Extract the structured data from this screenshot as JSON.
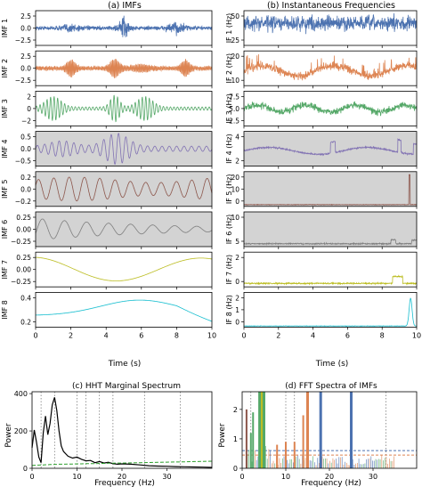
{
  "titles": {
    "imfs": "(a) IMFs",
    "freqs": "(b) Instantaneous Frequencies",
    "hht": "(c) HHT Marginal Spectrum",
    "fft": "(d) FFT Spectra of IMFs"
  },
  "labels": {
    "time": "Time (s)",
    "frequency": "Frequency (Hz)",
    "power": "Power"
  },
  "colors": {
    "imf1": "#4c72b0",
    "imf2": "#dd8452",
    "imf3": "#55a868",
    "imf4": "#8172b3",
    "imf5": "#8c564b",
    "imf6": "#7f7f7f",
    "imf7": "#bcbd22",
    "imf8": "#17becf",
    "shade": "#d3d3d3"
  },
  "chart_data": [
    {
      "type": "line",
      "panel": "(a) IMFs",
      "xlabel": "Time (s)",
      "xlim": [
        0,
        10
      ],
      "xticks": [
        0,
        2,
        4,
        6,
        8,
        10
      ],
      "rows": [
        {
          "ylabel": "IMF 1",
          "yticks": [
            "2.5",
            "0.0",
            "−2.5"
          ],
          "ylim": [
            -4,
            4
          ],
          "shaded": false,
          "color": "#4c72b0",
          "character": "broadband noise ~40 Hz, spikes near 5 s"
        },
        {
          "ylabel": "IMF 2",
          "yticks": [
            "2.5",
            "0.0",
            "−2.5"
          ],
          "ylim": [
            -3.5,
            3.5
          ],
          "shaded": false,
          "color": "#dd8452",
          "character": "oscillation ~14 Hz, bursts near 2, 4.5, 8.5 s"
        },
        {
          "ylabel": "IMF 3",
          "yticks": [
            "2",
            "0",
            "−2"
          ],
          "ylim": [
            -2.2,
            2.2
          ],
          "shaded": false,
          "color": "#55a868",
          "character": "oscillation ~5 Hz, bursts near 1, 4.5, 6.2 s"
        },
        {
          "ylabel": "IMF 4",
          "yticks": [
            "0.5",
            "0.0",
            "−0.5"
          ],
          "ylim": [
            -0.8,
            0.8
          ],
          "shaded": true,
          "color": "#8172b3",
          "character": "oscillation ~2.5 Hz, large near 4-5 s"
        },
        {
          "ylabel": "IMF 5",
          "yticks": [
            "0.2",
            "0.0",
            "−0.2"
          ],
          "ylim": [
            -0.32,
            0.32
          ],
          "shaded": true,
          "color": "#8c564b",
          "character": "oscillation ~1.2 Hz"
        },
        {
          "ylabel": "IMF 6",
          "yticks": [
            "0.25",
            "0.00",
            "−0.25"
          ],
          "ylim": [
            -0.4,
            0.4
          ],
          "shaded": true,
          "color": "#7f7f7f",
          "character": "decaying oscillation ~0.8 Hz"
        },
        {
          "ylabel": "IMF 7",
          "yticks": [
            "0.25",
            "0.00",
            "−0.25"
          ],
          "ylim": [
            -0.4,
            0.4
          ],
          "shaded": false,
          "color": "#bcbd22",
          "character": "slow wave, min ~-0.3 at 4.5 s"
        },
        {
          "ylabel": "IMF 8",
          "yticks": [
            "0.4",
            "0.2"
          ],
          "ylim": [
            0.05,
            0.5
          ],
          "shaded": false,
          "color": "#17becf",
          "character": "trend rising 0.2 to 0.4 at 6 s then falling to 0.1"
        }
      ]
    },
    {
      "type": "line",
      "panel": "(b) Instantaneous Frequencies",
      "xlabel": "Time (s)",
      "xlim": [
        0,
        10
      ],
      "xticks": [
        0,
        2,
        4,
        6,
        8,
        10
      ],
      "rows": [
        {
          "ylabel": "IF 1 (Hz)",
          "yticks": [
            "50",
            "25"
          ],
          "ylim": [
            0,
            60
          ],
          "shaded": false,
          "color": "#4c72b0"
        },
        {
          "ylabel": "IF 2 (Hz)",
          "yticks": [
            "20",
            "10"
          ],
          "ylim": [
            0,
            28
          ],
          "shaded": false,
          "color": "#dd8452"
        },
        {
          "ylabel": "IF 3 (Hz)",
          "yticks": [
            "7.5",
            "5.0",
            "2.5"
          ],
          "ylim": [
            1.5,
            8.5
          ],
          "shaded": false,
          "color": "#55a868"
        },
        {
          "ylabel": "IF 4 (Hz)",
          "yticks": [
            "4",
            "2"
          ],
          "ylim": [
            0,
            5
          ],
          "shaded": true,
          "color": "#8172b3"
        },
        {
          "ylabel": "IF 5 (Hz)",
          "yticks": [
            "20",
            "10",
            "0"
          ],
          "ylim": [
            0,
            22
          ],
          "shaded": true,
          "color": "#8c564b"
        },
        {
          "ylabel": "IF 6 (Hz)",
          "yticks": [
            "10",
            "5"
          ],
          "ylim": [
            0,
            12
          ],
          "shaded": true,
          "color": "#7f7f7f"
        },
        {
          "ylabel": "IF 7 (Hz)",
          "yticks": [
            "2",
            "0"
          ],
          "ylim": [
            0,
            3
          ],
          "shaded": false,
          "color": "#bcbd22"
        },
        {
          "ylabel": "IF 8 (Hz)",
          "yticks": [
            "2",
            "1",
            "0"
          ],
          "ylim": [
            0,
            2.5
          ],
          "shaded": false,
          "color": "#17becf"
        }
      ]
    },
    {
      "type": "line",
      "panel": "(c) HHT Marginal Spectrum",
      "xlabel": "Frequency (Hz)",
      "ylabel": "Power",
      "xlim": [
        0,
        40
      ],
      "ylim": [
        0,
        410
      ],
      "xticks": [
        0,
        10,
        20,
        30
      ],
      "yticks": [
        0,
        200,
        400
      ],
      "vlines": [
        2,
        5,
        10,
        12,
        15,
        18,
        25,
        33
      ],
      "x": [
        0,
        0.5,
        1,
        1.5,
        2,
        2.5,
        3,
        3.5,
        4,
        4.5,
        5,
        5.5,
        6,
        6.5,
        7,
        8,
        9,
        10,
        11,
        12,
        13,
        14,
        15,
        16,
        17,
        18,
        19,
        20,
        22,
        24,
        26,
        28,
        30,
        32,
        34,
        36,
        38,
        40
      ],
      "series": [
        {
          "values": [
            110,
            205,
            140,
            60,
            30,
            190,
            280,
            180,
            240,
            340,
            380,
            310,
            200,
            120,
            90,
            65,
            55,
            60,
            48,
            40,
            42,
            30,
            36,
            28,
            32,
            25,
            22,
            24,
            22,
            18,
            14,
            12,
            11,
            9,
            8,
            7,
            6,
            5
          ],
          "color": "#000000",
          "style": "solid"
        },
        {
          "values": [
            15,
            16,
            17,
            17,
            18,
            18,
            19,
            19,
            20,
            20,
            21,
            21,
            22,
            22,
            22,
            23,
            23,
            24,
            24,
            25,
            25,
            25,
            26,
            26,
            27,
            27,
            28,
            28,
            29,
            30,
            31,
            32,
            33,
            34,
            35,
            36,
            37,
            38
          ],
          "color": "#2ca02c",
          "style": "dashed"
        }
      ]
    },
    {
      "type": "bar",
      "panel": "(d) FFT Spectra of IMFs",
      "xlabel": "Frequency (Hz)",
      "ylabel": "Power",
      "xlim": [
        0,
        40
      ],
      "ylim": [
        0,
        2.6
      ],
      "xticks": [
        0,
        10,
        20,
        30
      ],
      "yticks": [
        0,
        1,
        2
      ],
      "vlines": [
        2,
        5,
        10,
        12,
        15,
        18,
        25,
        33
      ],
      "peaks": [
        {
          "freq": 1.0,
          "value": 2.0,
          "color": "#8c564b"
        },
        {
          "freq": 2.0,
          "value": 1.2,
          "color": "#55a868"
        },
        {
          "freq": 2.5,
          "value": 1.9,
          "color": "#55a868"
        },
        {
          "freq": 4.0,
          "value": 2.6,
          "color": "#55a868"
        },
        {
          "freq": 4.6,
          "value": 2.6,
          "color": "#bcbd22"
        },
        {
          "freq": 5.0,
          "value": 2.6,
          "color": "#55a868"
        },
        {
          "freq": 8.0,
          "value": 0.8,
          "color": "#dd8452"
        },
        {
          "freq": 10.0,
          "value": 0.9,
          "color": "#dd8452"
        },
        {
          "freq": 12.0,
          "value": 0.9,
          "color": "#dd8452"
        },
        {
          "freq": 15.0,
          "value": 2.6,
          "color": "#dd8452"
        },
        {
          "freq": 18.0,
          "value": 2.6,
          "color": "#4c72b0"
        },
        {
          "freq": 25.0,
          "value": 2.6,
          "color": "#4c72b0"
        },
        {
          "freq": 14.0,
          "value": 1.8,
          "color": "#dd8452"
        }
      ],
      "baselines": [
        {
          "value": 0.6,
          "color": "#4c72b0",
          "style": "dashed"
        },
        {
          "value": 0.45,
          "color": "#dd8452",
          "style": "dashed"
        }
      ]
    }
  ]
}
